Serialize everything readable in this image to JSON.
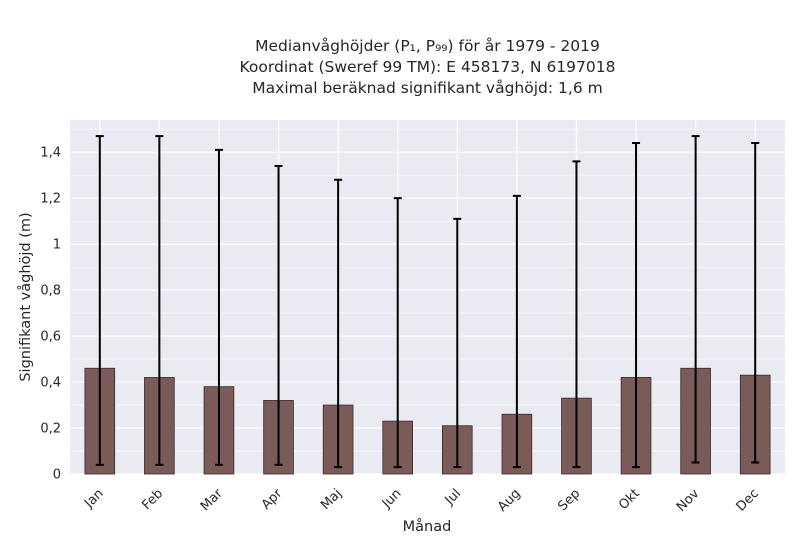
{
  "chart_data": {
    "type": "bar",
    "title_lines": [
      "Medianvåghöjder (P₁, P₉₉) för år 1979 - 2019",
      "Koordinat (Sweref 99 TM): E 458173, N 6197018",
      "Maximal beräknad signifikant våghöjd: 1,6 m"
    ],
    "xlabel": "Månad",
    "ylabel": "Signifikant våghöjd (m)",
    "ylim": [
      0,
      1.54
    ],
    "yticks": [
      0,
      0.2,
      0.4,
      0.6,
      0.8,
      1,
      1.2,
      1.4
    ],
    "ytick_labels": [
      "0",
      "0,2",
      "0,4",
      "0,6",
      "0,8",
      "1",
      "1,2",
      "1,4"
    ],
    "categories": [
      "Jan",
      "Feb",
      "Mar",
      "Apr",
      "Maj",
      "Jun",
      "Jul",
      "Aug",
      "Sep",
      "Okt",
      "Nov",
      "Dec"
    ],
    "values": [
      0.46,
      0.42,
      0.38,
      0.32,
      0.3,
      0.23,
      0.21,
      0.26,
      0.33,
      0.42,
      0.46,
      0.43
    ],
    "p1": [
      0.04,
      0.04,
      0.04,
      0.04,
      0.03,
      0.03,
      0.03,
      0.03,
      0.03,
      0.03,
      0.05,
      0.05
    ],
    "p99": [
      1.47,
      1.47,
      1.41,
      1.34,
      1.28,
      1.2,
      1.11,
      1.21,
      1.36,
      1.44,
      1.47,
      1.44
    ],
    "grid": true,
    "colors": {
      "bar": "#7b5a5a",
      "bar_edge": "#3a2a2a",
      "errorbar": "#000000",
      "plot_bg": "#eaeaf2",
      "grid": "#ffffff"
    }
  }
}
